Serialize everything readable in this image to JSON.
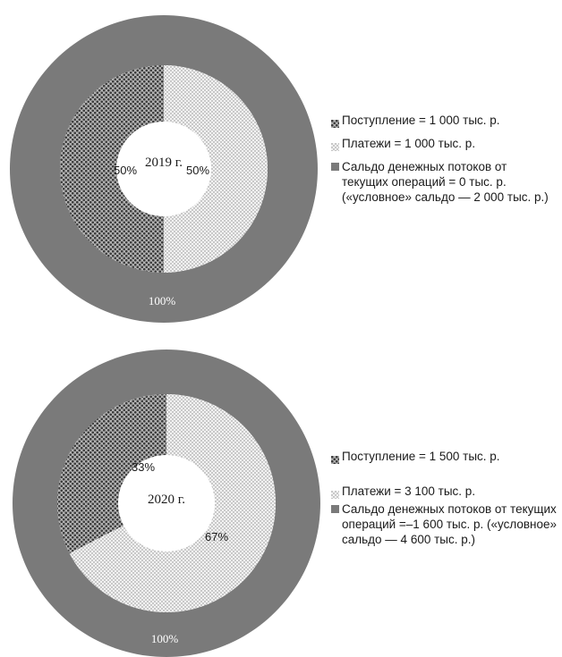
{
  "chart_data": [
    {
      "type": "pie",
      "title": "2019 г.",
      "rings": [
        {
          "name": "inner",
          "slices": [
            {
              "label": "Поступление = 1 000 тыс. р.",
              "value": 1000,
              "percent_label": "50%",
              "pattern": "dense-dots"
            },
            {
              "label": "Платежи = 1 000 тыс. р.",
              "value": 1000,
              "percent_label": "50%",
              "pattern": "light-dots"
            }
          ]
        },
        {
          "name": "outer",
          "slices": [
            {
              "label": "Сальдо денежных потоков от текущих операций = 0 тыс. р. («условное» сальдо — 2 000 тыс. р.)",
              "value": 2000,
              "percent_label": "100%",
              "pattern": "solid-gray"
            }
          ]
        }
      ],
      "legend": [
        "Поступление = 1 000 тыс. р.",
        "Платежи = 1 000 тыс. р.",
        "Сальдо денежных потоков от",
        "текущих операций = 0 тыс. р.",
        "(«условное» сальдо — 2 000 тыс. р.)"
      ],
      "legend_position": "right"
    },
    {
      "type": "pie",
      "title": "2020 г.",
      "rings": [
        {
          "name": "inner",
          "slices": [
            {
              "label": "Поступление = 1 500 тыс. р.",
              "value": 1500,
              "percent_label": "33%",
              "pattern": "dense-dots"
            },
            {
              "label": "Платежи = 3 100 тыс. р.",
              "value": 3100,
              "percent_label": "67%",
              "pattern": "light-dots"
            }
          ]
        },
        {
          "name": "outer",
          "slices": [
            {
              "label": "Сальдо денежных потоков от текущих операций =–1 600 тыс. р. («условное» сальдо — 4 600 тыс. р.)",
              "value": 4600,
              "percent_label": "100%",
              "pattern": "solid-gray"
            }
          ]
        }
      ],
      "legend": [
        "Поступление = 1 500 тыс. р.",
        "Платежи = 3 100 тыс. р.",
        "Сальдо денежных потоков от текущих",
        "операций =–1 600 тыс. р. («условное»",
        "сальдо — 4 600 тыс. р.)"
      ],
      "legend_position": "right"
    }
  ],
  "colors": {
    "outer_ring": "#7a7a7a",
    "dense_dots_bg": "#9a9a9a",
    "light_dots_bg": "#e6e6e6"
  }
}
